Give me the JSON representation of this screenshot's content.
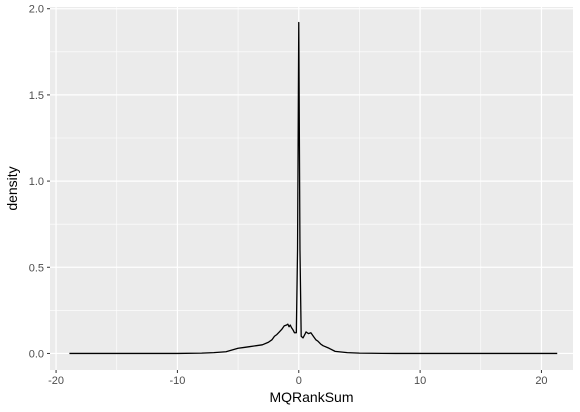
{
  "chart_data": {
    "type": "line",
    "xlabel": "MQRankSum",
    "ylabel": "density",
    "xlim": [
      -20.5,
      22.6
    ],
    "ylim": [
      -0.096,
      2.01
    ],
    "x_ticks": [
      -20,
      -10,
      0,
      10,
      20
    ],
    "x_tick_labels": [
      "-20",
      "-10",
      "0",
      "10",
      "20"
    ],
    "y_ticks": [
      0.0,
      0.5,
      1.0,
      1.5,
      2.0
    ],
    "y_tick_labels": [
      "0.0",
      "0.5",
      "1.0",
      "1.5",
      "2.0"
    ],
    "grid": true,
    "line_color": "#000000",
    "panel_color": "#ebebeb",
    "series": [
      {
        "x": [
          -18.9,
          -15,
          -10,
          -8,
          -7,
          -6,
          -5.5,
          -5,
          -4.5,
          -4,
          -3.5,
          -3,
          -2.5,
          -2.2,
          -2,
          -1.8,
          -1.6,
          -1.4,
          -1.2,
          -1,
          -0.9,
          -0.8,
          -0.7,
          -0.6,
          -0.5,
          -0.35,
          -0.2,
          -0.1,
          0,
          0.1,
          0.2,
          0.35,
          0.5,
          0.6,
          0.8,
          1,
          1.2,
          1.4,
          1.6,
          1.8,
          2,
          2.5,
          3,
          4,
          5,
          6,
          8,
          10,
          15,
          21.3
        ],
        "y": [
          0,
          0,
          0,
          0.002,
          0.005,
          0.01,
          0.02,
          0.03,
          0.035,
          0.04,
          0.045,
          0.05,
          0.065,
          0.08,
          0.1,
          0.11,
          0.125,
          0.14,
          0.16,
          0.165,
          0.17,
          0.155,
          0.165,
          0.15,
          0.14,
          0.12,
          0.12,
          0.6,
          1.92,
          0.6,
          0.1,
          0.09,
          0.11,
          0.125,
          0.115,
          0.12,
          0.1,
          0.08,
          0.07,
          0.055,
          0.045,
          0.03,
          0.012,
          0.005,
          0.002,
          0.001,
          0,
          0,
          0,
          0
        ]
      }
    ]
  }
}
